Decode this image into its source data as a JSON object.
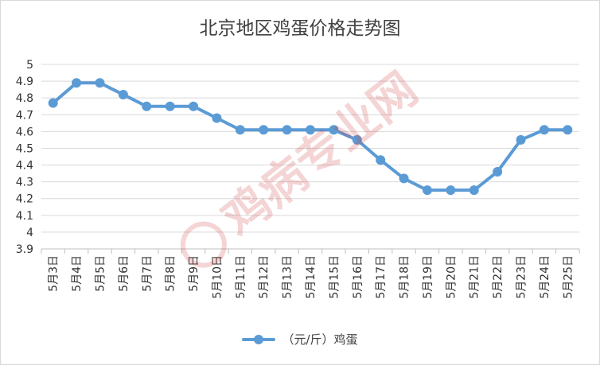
{
  "chart_data": {
    "type": "line",
    "title": "北京地区鸡蛋价格走势图",
    "xlabel": "",
    "ylabel": "",
    "ylim": [
      3.9,
      5
    ],
    "yticks": [
      "3.9",
      "4",
      "4.1",
      "4.2",
      "4.3",
      "4.4",
      "4.5",
      "4.6",
      "4.7",
      "4.8",
      "4.9",
      "5"
    ],
    "categories": [
      "5月3日",
      "5月4日",
      "5月5日",
      "5月6日",
      "5月7日",
      "5月8日",
      "5月9日",
      "5月10日",
      "5月11日",
      "5月12日",
      "5月13日",
      "5月14日",
      "5月15日",
      "5月16日",
      "5月17日",
      "5月18日",
      "5月19日",
      "5月20日",
      "5月21日",
      "5月22日",
      "5月23日",
      "5月24日",
      "5月25日"
    ],
    "series": [
      {
        "name": "（元/斤）鸡蛋",
        "values": [
          4.77,
          4.89,
          4.89,
          4.82,
          4.75,
          4.75,
          4.75,
          4.68,
          4.61,
          4.61,
          4.61,
          4.61,
          4.61,
          4.55,
          4.43,
          4.32,
          4.25,
          4.25,
          4.25,
          4.36,
          4.55,
          4.61,
          4.61
        ],
        "color": "#5b9bd5"
      }
    ],
    "grid": true,
    "legend": "bottom"
  },
  "watermark": {
    "text": "鸡病专业网",
    "color": "#e8a0a0"
  }
}
